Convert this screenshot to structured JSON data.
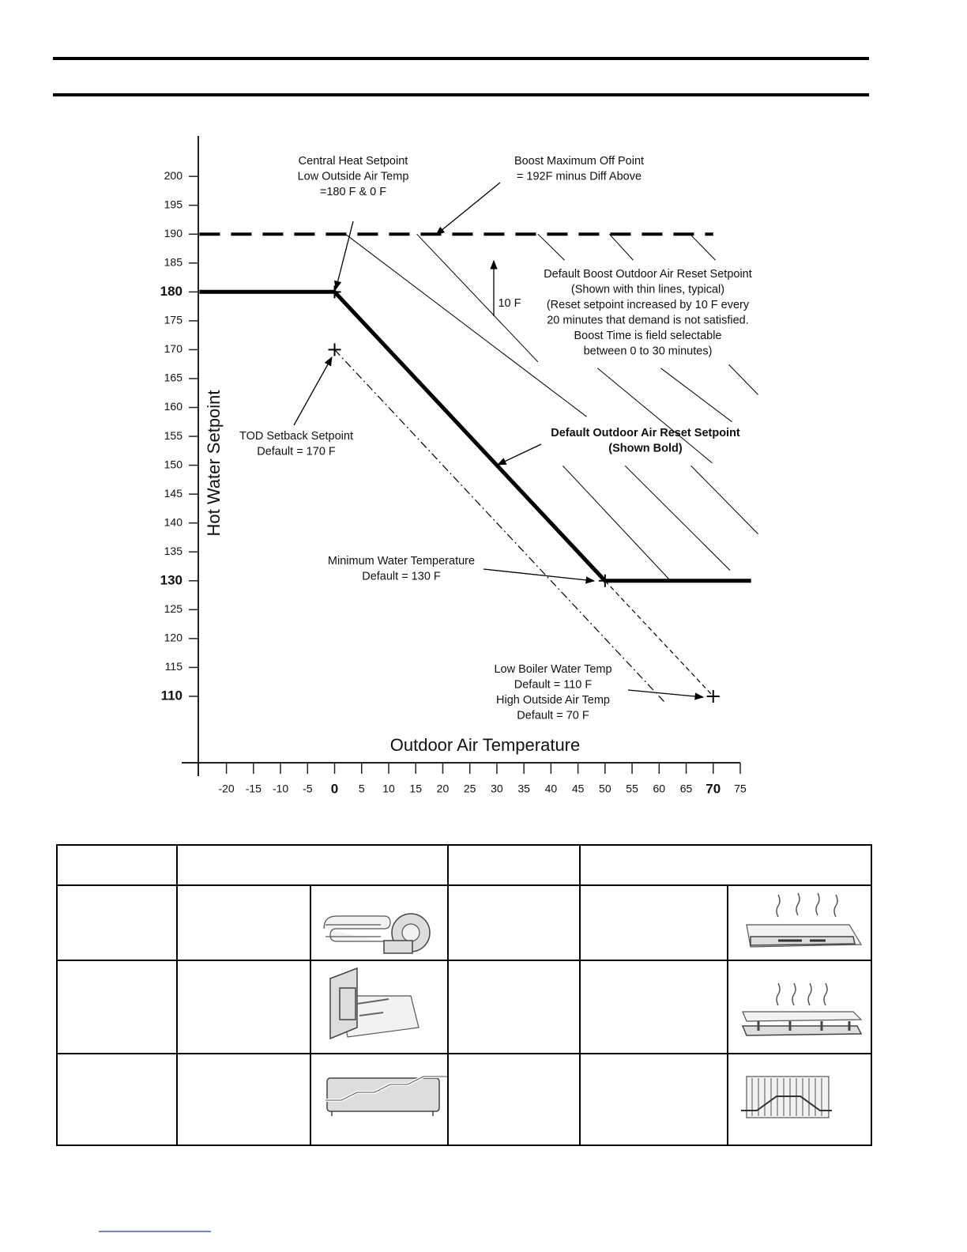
{
  "chart_data": {
    "type": "line",
    "xlabel": "Outdoor Air Temperature",
    "ylabel": "Hot Water Setpoint",
    "xlim": [
      -25.2,
      75
    ],
    "ylim": [
      98.5,
      207
    ],
    "xticks": [
      -20,
      -15,
      -10,
      -5,
      0,
      5,
      10,
      15,
      20,
      25,
      30,
      35,
      40,
      45,
      50,
      55,
      60,
      65,
      70,
      75
    ],
    "yticks": [
      110,
      115,
      120,
      125,
      130,
      135,
      140,
      145,
      150,
      155,
      160,
      165,
      170,
      175,
      180,
      185,
      190,
      195,
      200
    ],
    "emphasized_xticks": [
      0,
      70
    ],
    "emphasized_yticks": [
      110,
      130,
      180
    ],
    "series": [
      {
        "color": "#000000",
        "line_style": "bold",
        "x": [
          -25,
          0,
          50,
          77
        ],
        "values": [
          180,
          180,
          130,
          130
        ]
      },
      {
        "color": "#000000",
        "line_style": "dashed",
        "x": [
          50,
          70
        ],
        "values": [
          130,
          110
        ]
      },
      {
        "color": "#000000",
        "line_style": "dashdot",
        "x": [
          0,
          61
        ],
        "values": [
          170,
          109
        ]
      },
      {
        "color": "#000000",
        "line_style": "longdash",
        "x": [
          -25,
          70
        ],
        "values": [
          190,
          190
        ]
      },
      {
        "color": "#000000",
        "line_style": "thin",
        "x": [
          2,
          46.6,
          null,
          42.2,
          62.2,
          null,
          15.2,
          37.6,
          null,
          48.6,
          69.8,
          null,
          60.3,
          73.5,
          null,
          72.9,
          78.3,
          null,
          53.7,
          73.1,
          null,
          65.9,
          78.3,
          null,
          37.6,
          42.5,
          null,
          50.8,
          55.2,
          null,
          65.7,
          70.4
        ],
        "values": [
          190,
          158.4,
          null,
          149.9,
          129.9,
          null,
          190,
          167.9,
          null,
          166.8,
          150.4,
          null,
          166.8,
          157.5,
          null,
          167.4,
          162.2,
          null,
          149.9,
          131.8,
          null,
          149.9,
          138.1,
          null,
          190,
          185.5,
          null,
          190,
          185.5,
          null,
          190,
          185.5
        ]
      }
    ],
    "points": {
      "color": "#000000",
      "x": [
        0,
        0,
        50,
        70
      ],
      "values": [
        180,
        170,
        130,
        110
      ]
    },
    "annotations": [
      {
        "lines": [
          "Central Heat Setpoint",
          "Low Outside Air Temp",
          "=180 F & 0 F"
        ]
      },
      {
        "lines": [
          "Boost Maximum Off Point",
          "= 192F minus Diff Above"
        ]
      },
      {
        "lines": [
          "10 F"
        ]
      },
      {
        "lines": [
          "Default Boost Outdoor Air Reset Setpoint",
          "(Shown with thin lines, typical)",
          "(Reset setpoint increased by 10 F every",
          "20 minutes that demand is not satisfied.",
          "Boost Time is field selectable",
          "between 0 to 30 minutes)"
        ]
      },
      {
        "lines": [
          "Default Outdoor Air Reset Setpoint",
          "(Shown Bold)"
        ],
        "bold": true
      },
      {
        "lines": [
          "TOD Setback Setpoint",
          "Default  = 170 F"
        ]
      },
      {
        "lines": [
          "Minimum Water Temperature",
          "Default = 130 F"
        ]
      },
      {
        "lines": [
          "Low Boiler Water Temp",
          "Default = 110 F",
          "High Outside Air Temp",
          "Default = 70 F"
        ]
      }
    ]
  }
}
